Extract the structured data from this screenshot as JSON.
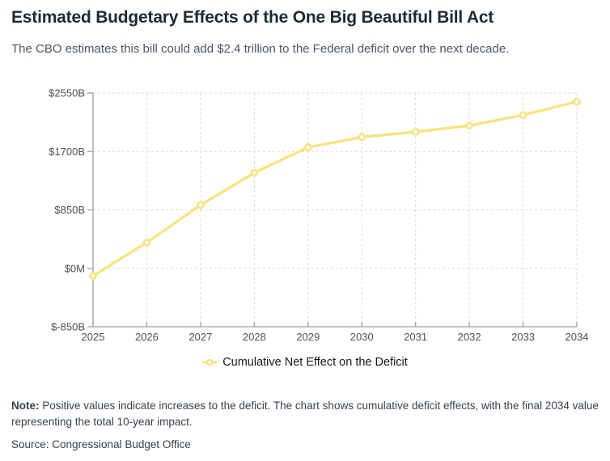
{
  "header": {
    "title": "Estimated Budgetary Effects of the One Big Beautiful Bill Act",
    "subtitle": "The CBO estimates this bill could add $2.4 trillion to the Federal deficit over the next decade."
  },
  "chart_data": {
    "type": "line",
    "title": "Estimated Budgetary Effects of the One Big Beautiful Bill Act",
    "x": [
      2025,
      2026,
      2027,
      2028,
      2029,
      2030,
      2031,
      2032,
      2033,
      2034
    ],
    "x_tick_labels": [
      "2025",
      "2026",
      "2027",
      "2028",
      "2029",
      "2030",
      "2031",
      "2032",
      "2033",
      "2034"
    ],
    "series": [
      {
        "name": "Cumulative Net Effect on the Deficit",
        "values": [
          -110,
          375,
          920,
          1390,
          1760,
          1910,
          1985,
          2075,
          2230,
          2424
        ]
      }
    ],
    "units": "billions of dollars",
    "ylim": [
      -850,
      2550
    ],
    "y_ticks": [
      {
        "value": -850,
        "label": "$-850B"
      },
      {
        "value": 0,
        "label": "$0M"
      },
      {
        "value": 850,
        "label": "$850B"
      },
      {
        "value": 1700,
        "label": "$1700B"
      },
      {
        "value": 2550,
        "label": "$2550B"
      }
    ],
    "grid": true,
    "legend_position": "bottom",
    "line_color": "#F9E27E",
    "marker_fill": "#FFFFFF",
    "grid_color": "#d9d9d9",
    "axis_color": "#a0a0a0"
  },
  "footer": {
    "note_label": "Note:",
    "note_text": " Positive values indicate increases to the deficit. The chart shows cumulative deficit effects, with the final 2034 value representing the total 10-year impact.",
    "source": "Source: Congressional Budget Office"
  }
}
